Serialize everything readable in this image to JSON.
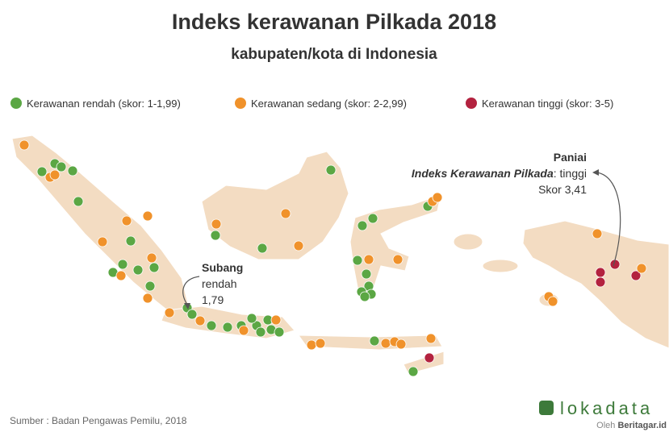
{
  "title": "Indeks kerawanan Pilkada 2018",
  "subtitle": "kabupaten/kota di Indonesia",
  "legend": [
    {
      "name": "Kerawanan rendah (skor: 1-1,99)",
      "color": "#5ba744"
    },
    {
      "name": "Kerawanan sedang (skor: 2-2,99)",
      "color": "#f0922b"
    },
    {
      "name": "Kerawanan tinggi (skor: 3-5)",
      "color": "#b3223f"
    }
  ],
  "annotations": {
    "subang": {
      "name": "Subang",
      "level": "rendah",
      "score": "1,79"
    },
    "paniai": {
      "name": "Paniai",
      "index_label": "Indeks Kerawanan Pilkada",
      "level": ": tinggi",
      "score": "Skor 3,41"
    }
  },
  "source": "Sumber : Badan Pengawas Pemilu, 2018",
  "logo": {
    "brand": "lokadata",
    "by": "Oleh ",
    "publisher": "Beritagar.id"
  }
}
